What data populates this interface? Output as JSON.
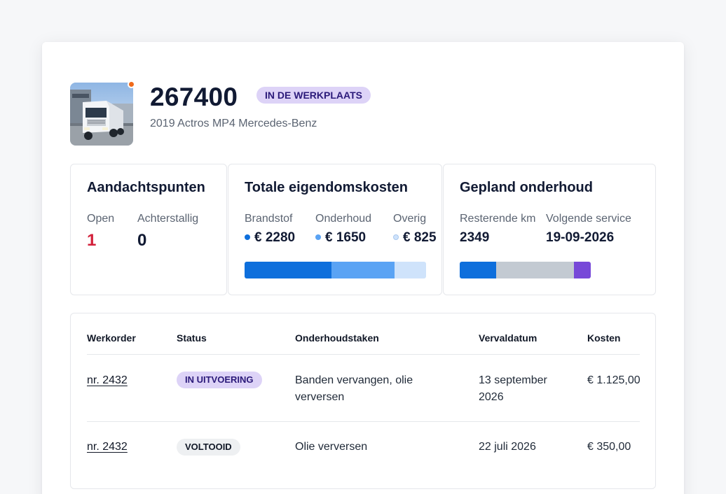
{
  "vehicle": {
    "id": "267400",
    "status": "IN DE WERKPLAATS",
    "subtitle": "2019 Actros MP4 Mercedes-Benz",
    "photo_icon": "truck-photo",
    "status_dot_color": "#f06a1a"
  },
  "attention": {
    "title": "Aandachtspunten",
    "open_label": "Open",
    "open_value": "1",
    "overdue_label": "Achterstallig",
    "overdue_value": "0"
  },
  "ownership": {
    "title": "Totale eigendomskosten",
    "items": [
      {
        "label": "Brandstof",
        "value": "€ 2280",
        "color": "#0e6fdc",
        "amount": 2280
      },
      {
        "label": "Onderhoud",
        "value": "€ 1650",
        "color": "#5aa3f4",
        "amount": 1650
      },
      {
        "label": "Overig",
        "value": "€ 825",
        "color": "#cfe3fb",
        "amount": 825
      }
    ]
  },
  "maintenance": {
    "title": "Gepland onderhoud",
    "remaining_label": "Resterende km",
    "remaining_value": "2349",
    "next_label": "Volgende service",
    "next_value": "19-09-2026",
    "segments": [
      {
        "color": "#0e6fdc",
        "fraction": 0.28
      },
      {
        "color": "#c3cad2",
        "fraction": 0.59
      },
      {
        "color": "#7748d8",
        "fraction": 0.13
      }
    ]
  },
  "workorders": {
    "headers": {
      "workorder": "Werkorder",
      "status": "Status",
      "tasks": "Onderhoudstaken",
      "due": "Vervaldatum",
      "cost": "Kosten"
    },
    "rows": [
      {
        "number": "nr. 2432",
        "status": "IN UITVOERING",
        "tasks_line1": "Banden vervangen, olie",
        "tasks_line2": "verversen",
        "due_line1": "13 september",
        "due_line2": "2026",
        "cost": "€ 1.125,00"
      },
      {
        "number": "nr. 2432",
        "status": "VOLTOOID",
        "tasks_line1": "Olie verversen",
        "due_line1": "22 juli 2026",
        "cost": "€ 350,00"
      }
    ]
  }
}
